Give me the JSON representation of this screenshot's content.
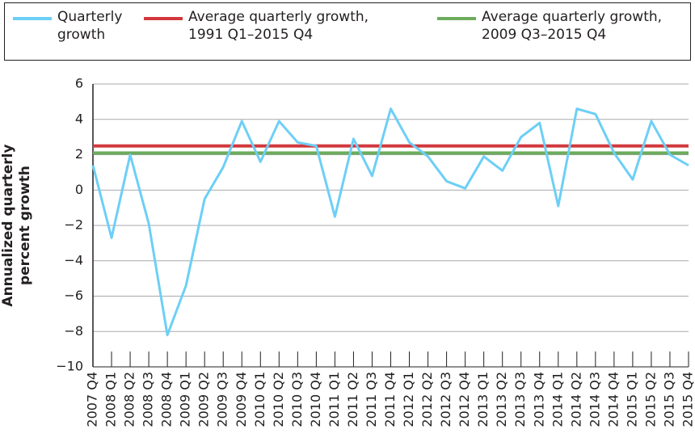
{
  "chart_data": {
    "type": "line",
    "y_label": "Annualized quarterly percent growth",
    "categories": [
      "2007 Q4",
      "2008 Q1",
      "2008 Q2",
      "2008 Q3",
      "2008 Q4",
      "2009 Q1",
      "2009 Q2",
      "2009 Q3",
      "2009 Q4",
      "2010 Q1",
      "2010 Q2",
      "2010 Q3",
      "2010 Q4",
      "2011 Q1",
      "2011 Q2",
      "2011 Q3",
      "2011 Q4",
      "2012 Q1",
      "2012 Q2",
      "2012 Q3",
      "2012 Q4",
      "2013 Q1",
      "2013 Q2",
      "2013 Q3",
      "2013 Q4",
      "2014 Q1",
      "2014 Q2",
      "2014 Q3",
      "2014 Q4",
      "2015 Q1",
      "2015 Q2",
      "2015 Q3",
      "2015 Q4"
    ],
    "series": [
      {
        "name": "Quarterly growth",
        "color": "#6dcff6",
        "values": [
          1.4,
          -2.7,
          2.0,
          -1.9,
          -8.2,
          -5.4,
          -0.5,
          1.3,
          3.9,
          1.6,
          3.9,
          2.7,
          2.5,
          -1.5,
          2.9,
          0.8,
          4.6,
          2.7,
          1.9,
          0.5,
          0.1,
          1.9,
          1.1,
          3.0,
          3.8,
          -0.9,
          4.6,
          4.3,
          2.1,
          0.6,
          3.9,
          2.0,
          1.4
        ]
      }
    ],
    "reference_lines": [
      {
        "name": "Average quarterly growth, 1991 Q1–2015 Q4",
        "color": "#d2373c",
        "value": 2.5
      },
      {
        "name": "Average quarterly growth, 2009 Q3–2015 Q4",
        "color": "#6cac5c",
        "value": 2.1
      }
    ],
    "ylim": [
      -10,
      6
    ],
    "yticks": [
      6,
      4,
      2,
      0,
      {
        "value": -2,
        "label": "−2"
      },
      {
        "value": -4,
        "label": "−4"
      },
      {
        "value": -6,
        "label": "−6"
      },
      {
        "value": -8,
        "label": "−8"
      },
      {
        "value": -10,
        "label": "−10"
      }
    ],
    "grid": true
  }
}
